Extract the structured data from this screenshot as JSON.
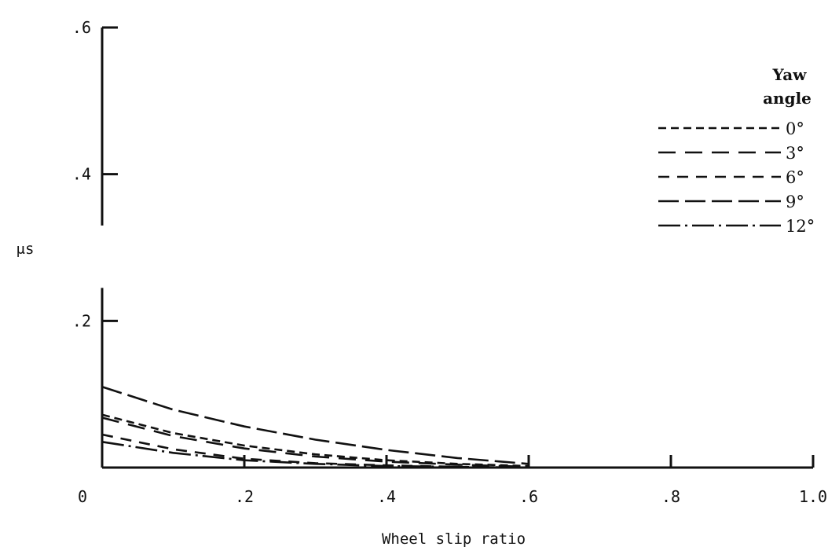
{
  "chart_data": {
    "type": "line",
    "xlabel": "Wheel slip ratio",
    "ylabel": "μs",
    "xlim": [
      0,
      1.0
    ],
    "ylim": [
      0,
      0.6
    ],
    "x_tick_labels": [
      "0",
      ".2",
      ".4",
      ".6",
      ".8",
      "1.0"
    ],
    "y_tick_labels": [
      ".2",
      ".4",
      ".6"
    ],
    "legend_title": [
      "Yaw",
      "angle"
    ],
    "legend_position": "top-right",
    "grid": false,
    "series": [
      {
        "name": "0°",
        "dash": "10 6",
        "x": [
          0,
          0.1,
          0.2,
          0.3,
          0.4,
          0.5,
          0.6
        ],
        "y": [
          0.072,
          0.047,
          0.03,
          0.018,
          0.01,
          0.005,
          0.002
        ]
      },
      {
        "name": "3°",
        "dash": "22 12",
        "x": [
          0,
          0.1,
          0.2,
          0.3,
          0.4,
          0.5,
          0.6
        ],
        "y": [
          0.068,
          0.043,
          0.026,
          0.015,
          0.008,
          0.004,
          0.001
        ]
      },
      {
        "name": "6°",
        "dash": "14 10",
        "x": [
          0,
          0.1,
          0.2,
          0.3,
          0.4,
          0.5,
          0.6
        ],
        "y": [
          0.045,
          0.025,
          0.012,
          0.006,
          0.003,
          0.001,
          0.0
        ]
      },
      {
        "name": "9°",
        "dash": "26 8",
        "x": [
          0,
          0.1,
          0.2,
          0.3,
          0.4,
          0.5,
          0.6
        ],
        "y": [
          0.11,
          0.079,
          0.056,
          0.038,
          0.024,
          0.013,
          0.005
        ]
      },
      {
        "name": "12°",
        "dash": "28 6 3 6",
        "x": [
          0,
          0.1,
          0.2,
          0.3,
          0.4,
          0.5,
          0.6
        ],
        "y": [
          0.035,
          0.02,
          0.01,
          0.005,
          0.002,
          0.001,
          0.0
        ]
      }
    ]
  }
}
